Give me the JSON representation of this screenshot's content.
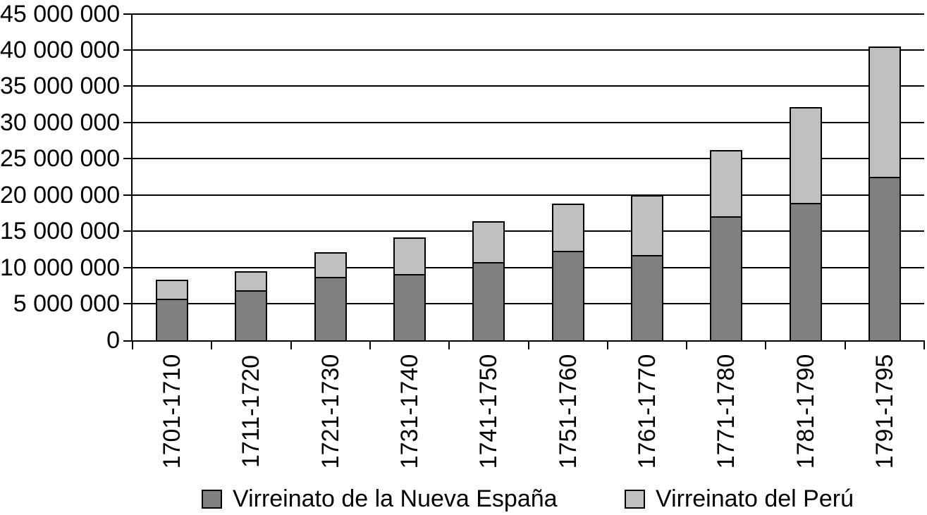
{
  "chart_data": {
    "type": "bar",
    "stacked": true,
    "title": "",
    "categories": [
      "1701-1710",
      "1711-1720",
      "1721-1730",
      "1731-1740",
      "1741-1750",
      "1751-1760",
      "1761-1770",
      "1771-1780",
      "1781-1790",
      "1791-1795"
    ],
    "series": [
      {
        "name": "Virreinato de la Nueva España",
        "color": "#808080",
        "values": [
          5700000,
          6900000,
          8700000,
          9100000,
          10800000,
          12300000,
          11700000,
          17100000,
          18900000,
          22500000
        ]
      },
      {
        "name": "Virreinato del Perú",
        "color": "#C0C0C0",
        "values": [
          2600000,
          2600000,
          3400000,
          5000000,
          5600000,
          6500000,
          8200000,
          9100000,
          13200000,
          17900000
        ]
      }
    ],
    "stack_totals": [
      8300000,
      9500000,
      12100000,
      14100000,
      16400000,
      18800000,
      19900000,
      26200000,
      32100000,
      40400000
    ],
    "xlabel": "",
    "ylabel": "",
    "ylim": [
      0,
      45000000
    ],
    "y_tick_step": 5000000,
    "y_tick_labels": [
      "0",
      "5 000 000",
      "10 000 000",
      "15 000 000",
      "20 000 000",
      "25 000 000",
      "30 000 000",
      "35 000 000",
      "40 000 000",
      "45 000 000"
    ],
    "grid": true,
    "gridline_color": "#000000",
    "axis_color": "#000000",
    "bar_outline_color": "#000000",
    "background": "#FFFFFF",
    "legend_position": "bottom"
  }
}
